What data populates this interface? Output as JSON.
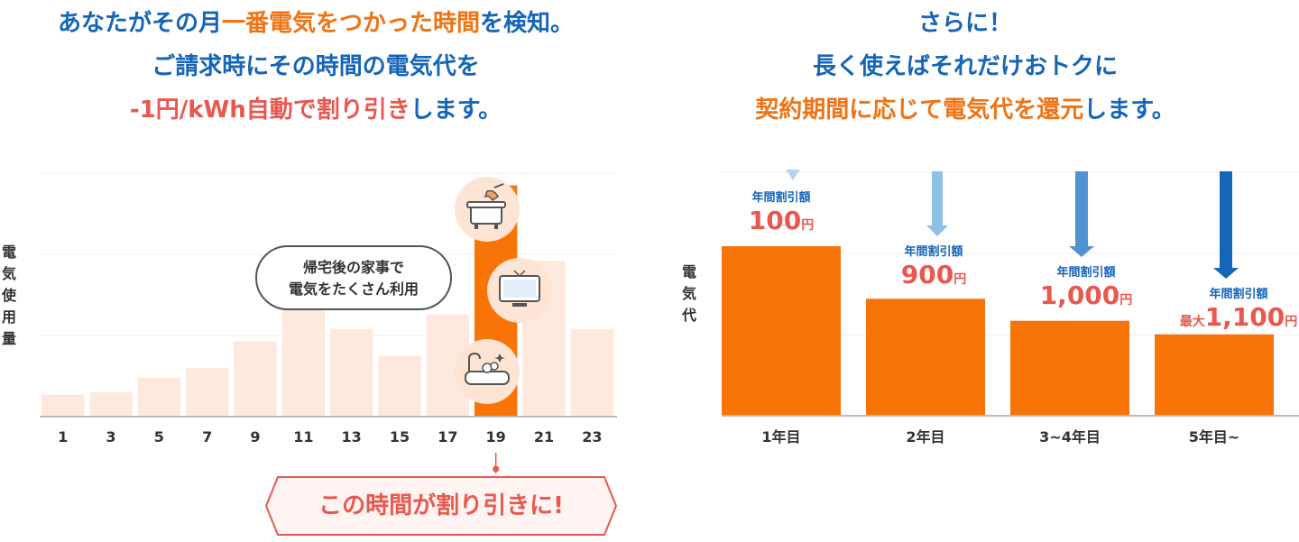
{
  "left": {
    "headline": {
      "line1_a": "あなたがその月",
      "line1_b": "一番電気をつかった時間",
      "line1_c": "を検知。",
      "line2": "ご請求時にその時間の電気代を",
      "line3_a": "-1円/kWh自動で割り引き",
      "line3_b": "します。"
    },
    "ylabel_chars": [
      "電",
      "気",
      "使",
      "用",
      "量"
    ],
    "callout_line1": "帰宅後の家事で",
    "callout_line2": "電気をたくさん利用",
    "discount_label": "この時間が割り引きに!",
    "icons": [
      "cooking-pot-icon",
      "television-icon",
      "bathtub-icon"
    ],
    "colors": {
      "bar": "#fde9de",
      "highlight": "#f87407",
      "tick_highlight": "#f07314",
      "grid": "#f0ece8"
    }
  },
  "right": {
    "headline": {
      "line1": "さらに！",
      "line2": "長く使えばそれだけおトクに",
      "line3_a": "契約期間に応じて電気代を還元",
      "line3_b": "します。"
    },
    "ylabel_chars": [
      "電",
      "気",
      "代"
    ],
    "refunds": [
      {
        "label": "年間割引額",
        "prefix": "",
        "amount": "100",
        "unit": "円"
      },
      {
        "label": "年間割引額",
        "prefix": "",
        "amount": "900",
        "unit": "円"
      },
      {
        "label": "年間割引額",
        "prefix": "",
        "amount": "1,000",
        "unit": "円"
      },
      {
        "label": "年間割引額",
        "prefix": "最大",
        "amount": "1,100",
        "unit": "円"
      }
    ],
    "colors": {
      "bar": "#f87407",
      "arrow_light": "#a7cdea",
      "arrow_dark": "#1565b8"
    }
  },
  "chart_data": [
    {
      "type": "bar",
      "title": "",
      "xlabel": "",
      "ylabel": "電気使用量",
      "categories": [
        "1",
        "3",
        "5",
        "7",
        "9",
        "11",
        "13",
        "15",
        "17",
        "19",
        "21",
        "23"
      ],
      "values": [
        9,
        10,
        16,
        20,
        31,
        47,
        36,
        25,
        42,
        95,
        64,
        36
      ],
      "highlight_category": "19",
      "ylim": [
        0,
        100
      ],
      "grid": true
    },
    {
      "type": "bar",
      "title": "",
      "xlabel": "",
      "ylabel": "電気代",
      "categories": [
        "1年目",
        "2年目",
        "3~4年目",
        "5年目~"
      ],
      "values": [
        100,
        69,
        56,
        48
      ],
      "annotations": [
        "100円",
        "900円",
        "1,000円",
        "最大1,100円"
      ],
      "ylim": [
        0,
        100
      ],
      "grid": true
    }
  ]
}
